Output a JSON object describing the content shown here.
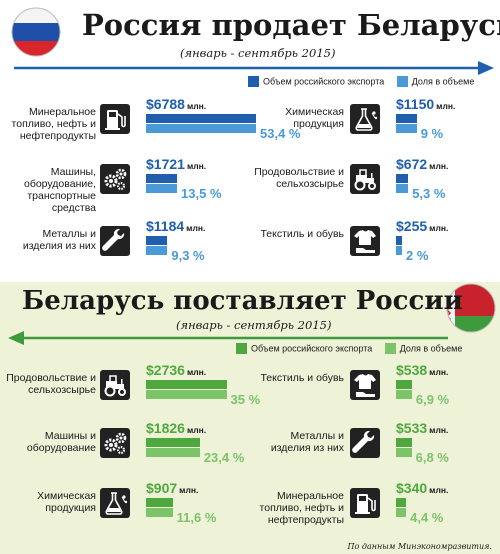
{
  "chart_data": [
    {
      "type": "bar",
      "title": "Россия продает Беларуси",
      "subtitle": "(январь - сентябрь 2015)",
      "legend": [
        "Объем российского экспорта",
        "Доля в объеме"
      ],
      "value_unit": "млн.",
      "items": [
        {
          "label": "Минеральное топливо, нефть и нефтепродукты",
          "value": "$6788",
          "share": "53,4 %",
          "share_num": 53.4,
          "icon": "fuel-pump-icon"
        },
        {
          "label": "Химическая продукция",
          "value": "$1150",
          "share": "9 %",
          "share_num": 9,
          "icon": "chemistry-flask-icon"
        },
        {
          "label": "Машины, оборудование, транспортные средства",
          "value": "$1721",
          "share": "13,5 %",
          "share_num": 13.5,
          "icon": "gears-icon"
        },
        {
          "label": "Продовольствие и сельхозсырье",
          "value": "$672",
          "share": "5,3 %",
          "share_num": 5.3,
          "icon": "tractor-icon"
        },
        {
          "label": "Металлы и изделия из них",
          "value": "$1184",
          "share": "9,3 %",
          "share_num": 9.3,
          "icon": "wrench-icon"
        },
        {
          "label": "Текстиль и обувь",
          "value": "$255",
          "share": "2 %",
          "share_num": 2,
          "icon": "shirt-shoe-icon"
        }
      ]
    },
    {
      "type": "bar",
      "title": "Беларусь поставляет России",
      "subtitle": "(январь - сентябрь 2015)",
      "legend": [
        "Объем российского экспорта",
        "Доля в объеме"
      ],
      "value_unit": "млн.",
      "items": [
        {
          "label": "Продовольствие и сельхозсырье",
          "value": "$2736",
          "share": "35 %",
          "share_num": 35,
          "icon": "tractor-icon"
        },
        {
          "label": "Текстиль и обувь",
          "value": "$538",
          "share": "6,9 %",
          "share_num": 6.9,
          "icon": "shirt-shoe-icon"
        },
        {
          "label": "Машины и оборудование",
          "value": "$1826",
          "share": "23,4 %",
          "share_num": 23.4,
          "icon": "gears-icon"
        },
        {
          "label": "Металлы и изделия из них",
          "value": "$533",
          "share": "6,8 %",
          "share_num": 6.8,
          "icon": "wrench-icon"
        },
        {
          "label": "Химическая продукция",
          "value": "$907",
          "share": "11,6 %",
          "share_num": 11.6,
          "icon": "chemistry-flask-icon"
        },
        {
          "label": "Минеральное топливо, нефть и нефтепродукты",
          "value": "$340",
          "share": "4,4 %",
          "share_num": 4.4,
          "icon": "fuel-pump-icon"
        }
      ]
    }
  ],
  "colors": {
    "blue_dark": "#1f5fae",
    "blue_light": "#4a9ad8",
    "green_dark": "#4fa83d",
    "green_light": "#7cc36a",
    "icon_bg": "#222222"
  },
  "source": "По данным Минэкономразвития."
}
